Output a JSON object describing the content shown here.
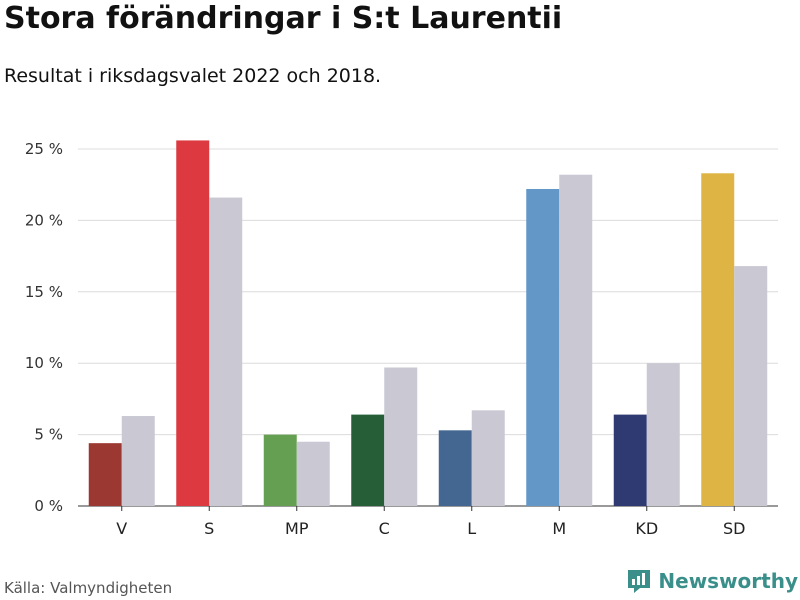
{
  "title": "Stora förändringar i S:t Laurentii",
  "subtitle": "Resultat i riksdagsvalet 2022 och 2018.",
  "source": "Källa: Valmyndigheten",
  "brand": {
    "name": "Newsworthy",
    "icon": "newsworthy-logo-icon",
    "color": "#3a8f8a"
  },
  "chart_data": {
    "type": "bar",
    "categories": [
      "V",
      "S",
      "MP",
      "C",
      "L",
      "M",
      "KD",
      "SD"
    ],
    "series": [
      {
        "values": [
          4.4,
          25.6,
          5.0,
          6.4,
          5.3,
          22.2,
          6.4,
          23.3
        ],
        "colors": [
          "#9b3832",
          "#dc3a40",
          "#65a052",
          "#255e37",
          "#436791",
          "#6297c8",
          "#2f3a72",
          "#deb545"
        ]
      },
      {
        "values": [
          6.3,
          21.6,
          4.5,
          9.7,
          6.7,
          23.2,
          10.0,
          16.8
        ],
        "color": "#c9c8d3"
      }
    ],
    "yticks": [
      "0 %",
      "5 %",
      "10 %",
      "15 %",
      "20 %",
      "25 %"
    ],
    "ylim": [
      0,
      25
    ],
    "grid": true
  }
}
